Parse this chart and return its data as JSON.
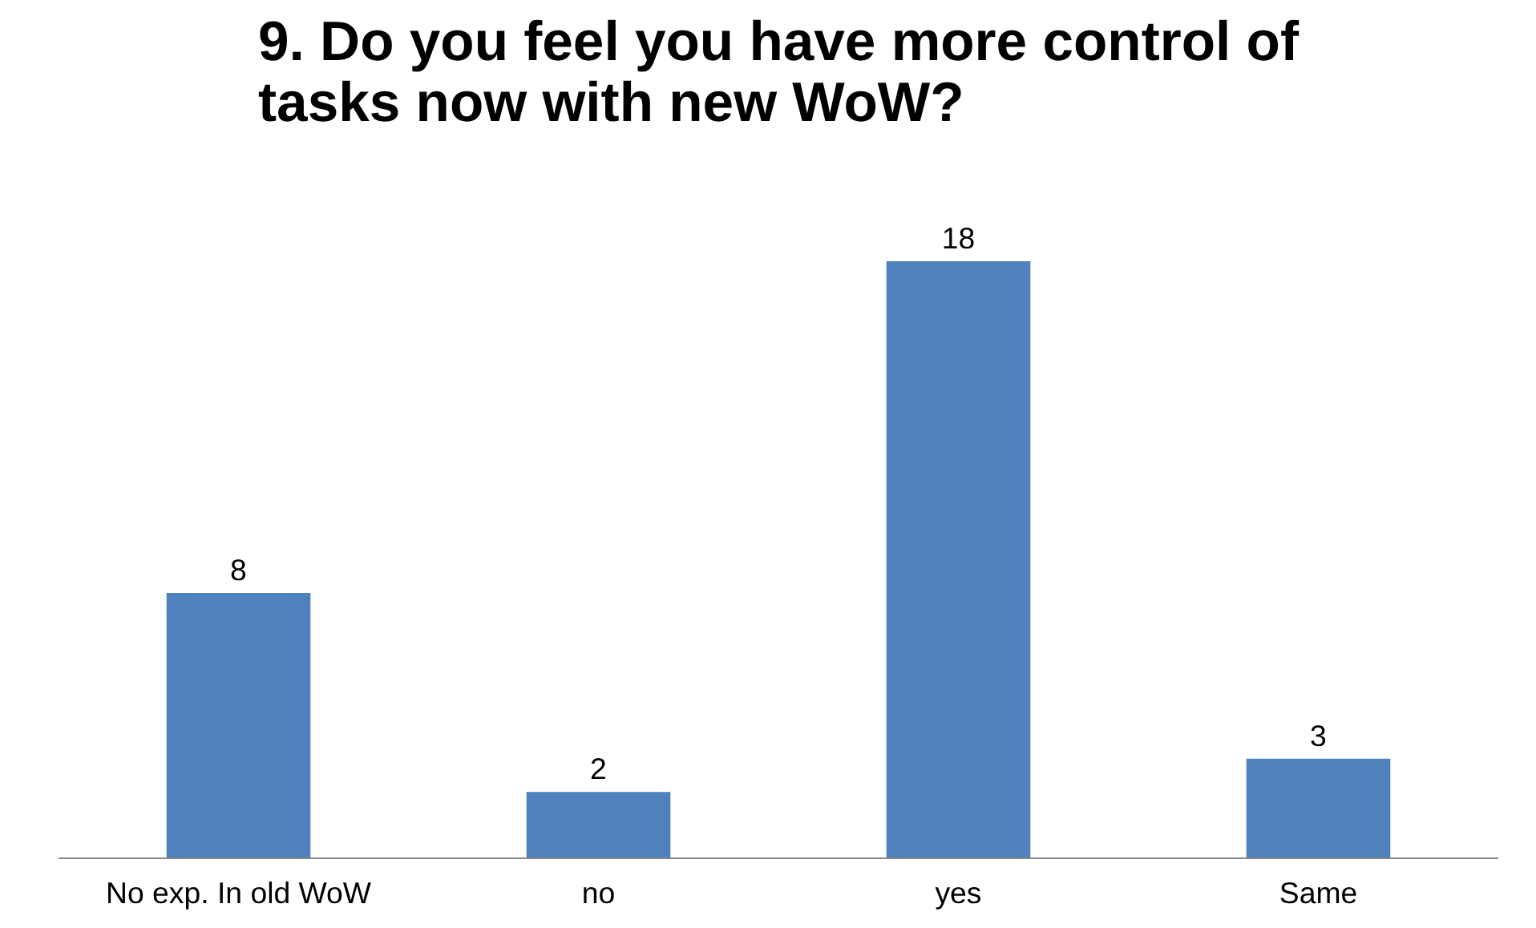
{
  "chart_data": {
    "type": "bar",
    "title": "9. Do you feel you have more control of\ntasks now with new WoW?",
    "categories": [
      "No exp. In old WoW",
      "no",
      "yes",
      "Same"
    ],
    "values": [
      8,
      2,
      18,
      3
    ],
    "color": "#4f81bd",
    "data_labels": true
  }
}
